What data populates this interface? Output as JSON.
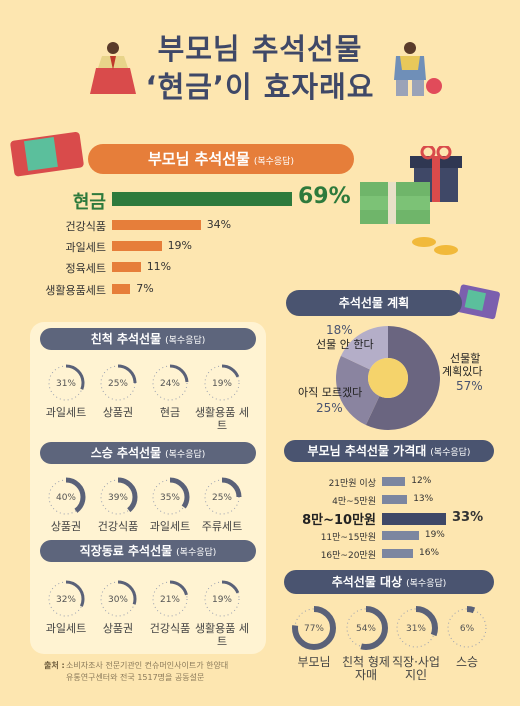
{
  "title": {
    "line1": "부모님 추석선물",
    "line2": "‘현금’이 효자래요"
  },
  "parents_gift": {
    "banner": "부모님 추석선물",
    "note": "(복수응답)",
    "items": [
      {
        "label": "현금",
        "pct": "69%",
        "value": 69
      },
      {
        "label": "건강식품",
        "pct": "34%",
        "value": 34
      },
      {
        "label": "과일세트",
        "pct": "19%",
        "value": 19
      },
      {
        "label": "정육세트",
        "pct": "11%",
        "value": 11
      },
      {
        "label": "생활용품세트",
        "pct": "7%",
        "value": 7
      }
    ]
  },
  "relatives_gift": {
    "banner": "친척 추석선물",
    "note": "(복수응답)",
    "items": [
      {
        "label": "과일세트",
        "pct": "31%",
        "value": 31
      },
      {
        "label": "상품권",
        "pct": "25%",
        "value": 25
      },
      {
        "label": "현금",
        "pct": "24%",
        "value": 24
      },
      {
        "label": "생활용품 세트",
        "pct": "19%",
        "value": 19
      }
    ]
  },
  "teacher_gift": {
    "banner": "스승 추석선물",
    "note": "(복수응답)",
    "items": [
      {
        "label": "상품권",
        "pct": "40%",
        "value": 40
      },
      {
        "label": "건강식품",
        "pct": "39%",
        "value": 39
      },
      {
        "label": "과일세트",
        "pct": "35%",
        "value": 35
      },
      {
        "label": "주류세트",
        "pct": "25%",
        "value": 25
      }
    ]
  },
  "colleague_gift": {
    "banner": "직장동료 추석선물",
    "note": "(복수응답)",
    "items": [
      {
        "label": "과일세트",
        "pct": "32%",
        "value": 32
      },
      {
        "label": "상품권",
        "pct": "30%",
        "value": 30
      },
      {
        "label": "건강식품",
        "pct": "21%",
        "value": 21
      },
      {
        "label": "생활용품 세트",
        "pct": "19%",
        "value": 19
      }
    ]
  },
  "source": {
    "label": "출처 :",
    "line1": "소비자조사 전문기관인 컨슈머인사이트가 한양대",
    "line2": "유통연구센터와 전국 1517명을 공동설문"
  },
  "plan": {
    "banner": "추석선물 계획",
    "items": [
      {
        "label": "선물할 계획있다",
        "pct": "57%",
        "value": 57
      },
      {
        "label": "아직 모르겠다",
        "pct": "25%",
        "value": 25
      },
      {
        "label": "선물 안 한다",
        "pct": "18%",
        "value": 18
      }
    ]
  },
  "price": {
    "banner": "부모님 추석선물 가격대",
    "note": "(복수응답)",
    "items": [
      {
        "label": "21만원 이상",
        "pct": "12%",
        "value": 12
      },
      {
        "label": "4만~5만원",
        "pct": "13%",
        "value": 13
      },
      {
        "label": "8만~10만원",
        "pct": "33%",
        "value": 33
      },
      {
        "label": "11만~15만원",
        "pct": "19%",
        "value": 19
      },
      {
        "label": "16만~20만원",
        "pct": "16%",
        "value": 16
      }
    ]
  },
  "target": {
    "banner": "추석선물 대상",
    "note": "(복수응답)",
    "items": [
      {
        "label": "부모님",
        "pct": "77%",
        "value": 77
      },
      {
        "label": "친척 형제 자매",
        "pct": "54%",
        "value": 54
      },
      {
        "label": "직장·사업 지인",
        "pct": "31%",
        "value": 31
      },
      {
        "label": "스승",
        "pct": "6%",
        "value": 6
      }
    ]
  },
  "colors": {
    "orange": "#e67e3a",
    "navy": "#4a5470",
    "green": "#2e7a3c",
    "ring_track": "#9aa0b0",
    "ring_fill": "#5a6178"
  },
  "chart_data": [
    {
      "type": "bar",
      "title": "부모님 추석선물",
      "categories": [
        "현금",
        "건강식품",
        "과일세트",
        "정육세트",
        "생활용품세트"
      ],
      "values": [
        69,
        34,
        19,
        11,
        7
      ]
    },
    {
      "type": "pie",
      "title": "친척 추석선물",
      "categories": [
        "과일세트",
        "상품권",
        "현금",
        "생활용품 세트"
      ],
      "values": [
        31,
        25,
        24,
        19
      ]
    },
    {
      "type": "pie",
      "title": "스승 추석선물",
      "categories": [
        "상품권",
        "건강식품",
        "과일세트",
        "주류세트"
      ],
      "values": [
        40,
        39,
        35,
        25
      ]
    },
    {
      "type": "pie",
      "title": "직장동료 추석선물",
      "categories": [
        "과일세트",
        "상품권",
        "건강식품",
        "생활용품 세트"
      ],
      "values": [
        32,
        30,
        21,
        19
      ]
    },
    {
      "type": "pie",
      "title": "추석선물 계획",
      "categories": [
        "선물할 계획있다",
        "아직 모르겠다",
        "선물 안 한다"
      ],
      "values": [
        57,
        25,
        18
      ]
    },
    {
      "type": "bar",
      "title": "부모님 추석선물 가격대",
      "categories": [
        "21만원 이상",
        "4만~5만원",
        "8만~10만원",
        "11만~15만원",
        "16만~20만원"
      ],
      "values": [
        12,
        13,
        33,
        19,
        16
      ]
    },
    {
      "type": "pie",
      "title": "추석선물 대상",
      "categories": [
        "부모님",
        "친척 형제 자매",
        "직장·사업 지인",
        "스승"
      ],
      "values": [
        77,
        54,
        31,
        6
      ]
    }
  ]
}
